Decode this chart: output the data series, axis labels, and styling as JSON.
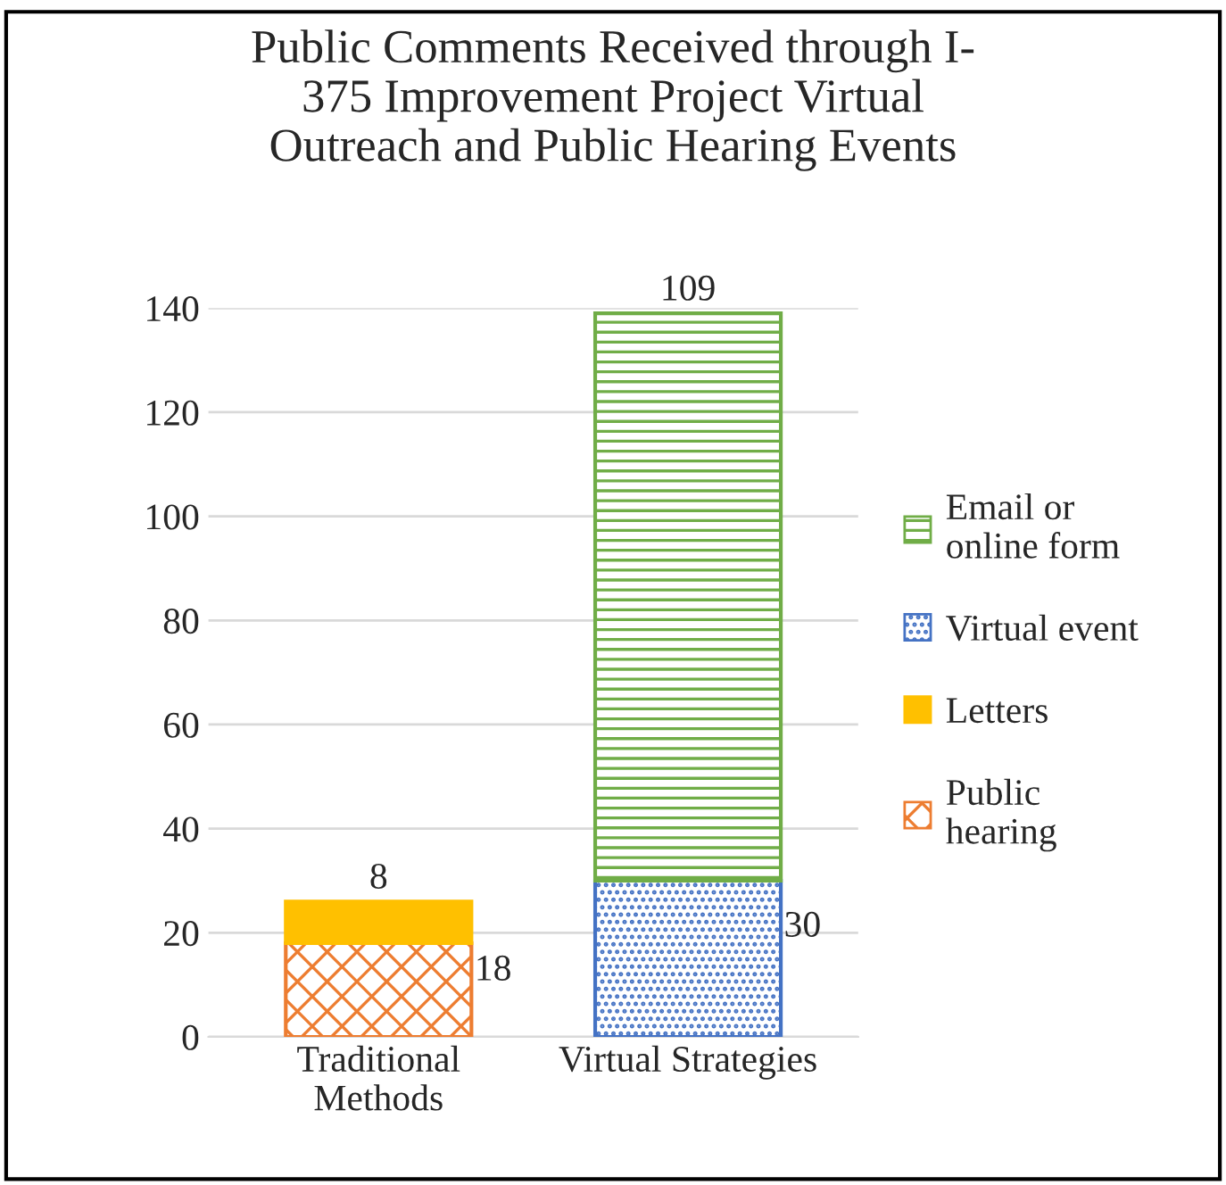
{
  "chart_data": {
    "type": "bar",
    "title": "Public Comments Received through I-\n375 Improvement Project Virtual\nOutreach and Public Hearing Events",
    "categories": [
      "Traditional\nMethods",
      "Virtual Strategies"
    ],
    "stacked": true,
    "series": [
      {
        "name": "Public\nhearing",
        "color": "#ed7d31",
        "values": [
          18,
          null
        ]
      },
      {
        "name": "Letters",
        "color": "#ffc000",
        "values": [
          8,
          null
        ]
      },
      {
        "name": "Virtual event",
        "color": "#4472c4",
        "values": [
          null,
          30
        ]
      },
      {
        "name": "Email or\nonline form",
        "color": "#70ad47",
        "values": [
          null,
          109
        ]
      }
    ],
    "ylim": [
      0,
      140
    ],
    "yticks": [
      0,
      20,
      40,
      60,
      80,
      100,
      120,
      140
    ],
    "grid": "y",
    "legend": "right",
    "data_labels": true
  }
}
